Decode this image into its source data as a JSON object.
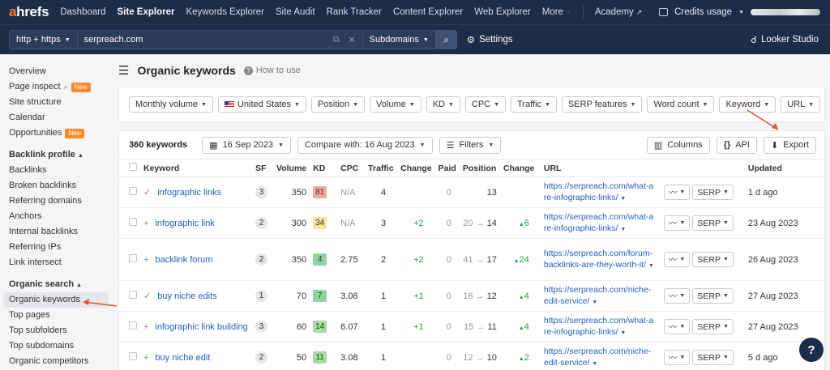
{
  "nav": {
    "logo_a": "a",
    "logo_rest": "hrefs",
    "items": [
      "Dashboard",
      "Site Explorer",
      "Keywords Explorer",
      "Site Audit",
      "Rank Tracker",
      "Content Explorer",
      "Web Explorer",
      "More",
      "Academy"
    ],
    "credits": "Credits usage"
  },
  "search": {
    "protocol": "http + https",
    "url": "serpreach.com",
    "mode": "Subdomains",
    "settings": "Settings",
    "looker": "Looker Studio"
  },
  "sidebar": {
    "top": [
      {
        "label": "Overview"
      },
      {
        "label": "Page inspect",
        "badge": "New"
      },
      {
        "label": "Site structure"
      },
      {
        "label": "Calendar"
      },
      {
        "label": "Opportunities",
        "badge": "New"
      }
    ],
    "backlink_head": "Backlink profile",
    "backlink": [
      "Backlinks",
      "Broken backlinks",
      "Referring domains",
      "Anchors",
      "Internal backlinks",
      "Referring IPs",
      "Link intersect"
    ],
    "organic_head": "Organic search",
    "organic": [
      "Organic keywords",
      "Top pages",
      "Top subfolders",
      "Top subdomains",
      "Organic competitors"
    ]
  },
  "main": {
    "title": "Organic keywords",
    "howto": "How to use",
    "filters": [
      "Monthly volume",
      "United States",
      "Position",
      "Volume",
      "KD",
      "CPC",
      "Traffic",
      "SERP features",
      "Word count",
      "Keyword",
      "URL"
    ],
    "count": "360 keywords",
    "date": "16 Sep 2023",
    "compare": "Compare with: 16 Aug 2023",
    "filters_btn": "Filters",
    "columns": "Columns",
    "api": "API",
    "export": "Export"
  },
  "table": {
    "headers": [
      "Keyword",
      "SF",
      "Volume",
      "KD",
      "CPC",
      "Traffic",
      "Change",
      "Paid",
      "Position",
      "Change",
      "URL",
      "Updated"
    ],
    "rows": [
      {
        "kw": "infographic links",
        "mark": "✓",
        "sf": "3",
        "volume": "350",
        "kd": "81",
        "kd_color": "#f4a99a",
        "cpc": "N/A",
        "traffic": "4",
        "change": "",
        "paid": "0",
        "pos_from": "",
        "pos_to": "13",
        "pos_change": "",
        "url1": "https://serpreach.com/what-a",
        "url2": "re-infographic-links/",
        "url3": "",
        "serp": "SERP",
        "updated": "1 d ago"
      },
      {
        "kw": "infographic link",
        "mark": "+",
        "sf": "2",
        "volume": "300",
        "kd": "34",
        "kd_color": "#f1e79a",
        "cpc": "N/A",
        "traffic": "3",
        "change": "+2",
        "paid": "0",
        "pos_from": "20",
        "pos_to": "14",
        "pos_change": "6",
        "url1": "https://serpreach.com/what-a",
        "url2": "re-infographic-links/",
        "url3": "",
        "serp": "SERP",
        "updated": "23 Aug 2023"
      },
      {
        "kw": "backlink forum",
        "mark": "+",
        "sf": "2",
        "volume": "350",
        "kd": "4",
        "kd_color": "#8fd4a0",
        "cpc": "2.75",
        "traffic": "2",
        "change": "+2",
        "paid": "0",
        "pos_from": "41",
        "pos_to": "17",
        "pos_change": "24",
        "url1": "https://serpreach.com/forum-",
        "url2": "backlinks-are-they-worth-it/",
        "url3": "",
        "serp": "SERP",
        "updated": "26 Aug 2023"
      },
      {
        "kw": "buy niche edits",
        "mark": "✓",
        "sf": "1",
        "volume": "70",
        "kd": "7",
        "kd_color": "#8fd4a0",
        "cpc": "3.08",
        "traffic": "1",
        "change": "+1",
        "paid": "0",
        "pos_from": "16",
        "pos_to": "12",
        "pos_change": "4",
        "url1": "https://serpreach.com/niche-",
        "url2": "edit-service/",
        "url3": "",
        "serp": "SERP",
        "updated": "27 Aug 2023"
      },
      {
        "kw": "infographic link building",
        "mark": "+",
        "sf": "3",
        "volume": "60",
        "kd": "14",
        "kd_color": "#a8dca0",
        "cpc": "6.07",
        "traffic": "1",
        "change": "+1",
        "paid": "0",
        "pos_from": "15",
        "pos_to": "11",
        "pos_change": "4",
        "url1": "https://serpreach.com/what-a",
        "url2": "re-infographic-links/",
        "url3": "",
        "serp": "SERP",
        "updated": "27 Aug 2023"
      },
      {
        "kw": "buy niche edit",
        "mark": "+",
        "sf": "2",
        "volume": "50",
        "kd": "11",
        "kd_color": "#a8dca0",
        "cpc": "3.08",
        "traffic": "1",
        "change": "",
        "paid": "0",
        "pos_from": "12",
        "pos_to": "10",
        "pos_change": "2",
        "url1": "https://serpreach.com/niche-",
        "url2": "edit-service/",
        "url3": "",
        "serp": "SERP",
        "updated": "5 d ago"
      }
    ]
  },
  "help": "?",
  "colors": {
    "nav_bg": "#1c2d49",
    "accent": "#ff7c1e",
    "link": "#2160c4",
    "up": "#2a9d3d",
    "arrow": "#e8502e"
  }
}
